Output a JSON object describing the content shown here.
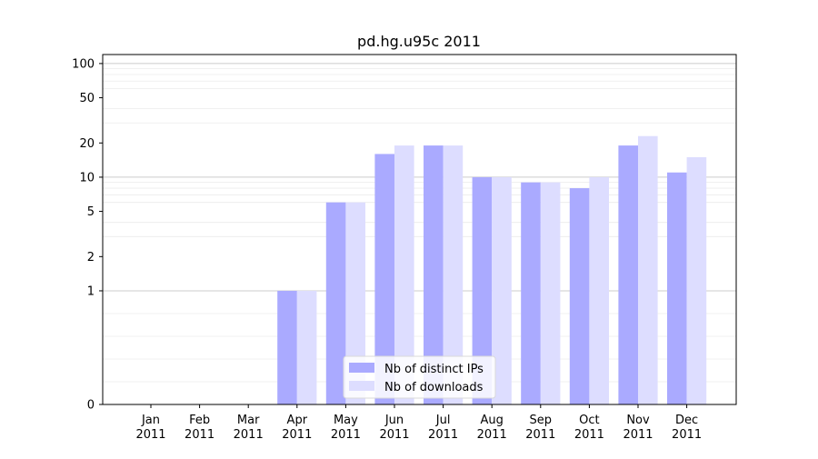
{
  "chart_data": {
    "type": "bar",
    "title": "pd.hg.u95c 2011",
    "xlabel": "",
    "ylabel": "",
    "yscale": "symlog",
    "ylim": [
      0,
      120
    ],
    "y_ticks": [
      0,
      1,
      2,
      5,
      10,
      20,
      50,
      100
    ],
    "y_tick_labels": [
      "0",
      "1",
      "2",
      "5",
      "10",
      "20",
      "50",
      "100"
    ],
    "categories": [
      "Jan\n2011",
      "Feb\n2011",
      "Mar\n2011",
      "Apr\n2011",
      "May\n2011",
      "Jun\n2011",
      "Jul\n2011",
      "Aug\n2011",
      "Sep\n2011",
      "Oct\n2011",
      "Nov\n2011",
      "Dec\n2011"
    ],
    "series": [
      {
        "name": "Nb of distinct IPs",
        "color": "#aaaaff",
        "values": [
          0,
          0,
          0,
          1,
          6,
          16,
          19,
          10,
          9,
          8,
          19,
          11
        ]
      },
      {
        "name": "Nb of downloads",
        "color": "#ddddff",
        "values": [
          0,
          0,
          0,
          1,
          6,
          19,
          19,
          10,
          9,
          10,
          23,
          15
        ]
      }
    ],
    "grid": "horizontal",
    "legend_position": "lower-center"
  }
}
